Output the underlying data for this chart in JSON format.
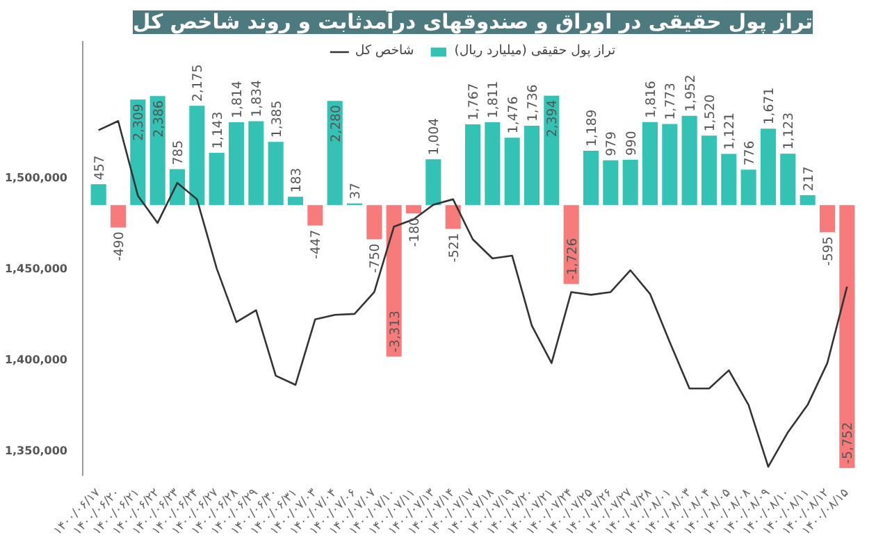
{
  "chart_data": {
    "type": "bar",
    "title": "تراز پول حقیقی در اوراق و صندوقهای درآمدثابت و روند شاخص کل",
    "categories": [
      "۱۴۰۰/۰۶/۱۷",
      "۱۴۰۰/۰۶/۲۰",
      "۱۴۰۰/۰۶/۲۱",
      "۱۴۰۰/۰۶/۲۲",
      "۱۴۰۰/۰۶/۲۳",
      "۱۴۰۰/۰۶/۲۴",
      "۱۴۰۰/۰۶/۲۷",
      "۱۴۰۰/۰۶/۲۸",
      "۱۴۰۰/۰۶/۲۹",
      "۱۴۰۰/۰۶/۳۰",
      "۱۴۰۰/۰۶/۳۱",
      "۱۴۰۰/۰۷/۰۳",
      "۱۴۰۰/۰۷/۰۴",
      "۱۴۰۰/۰۷/۰۶",
      "۱۴۰۰/۰۷/۰۷",
      "۱۴۰۰/۰۷/۱۰",
      "۱۴۰۰/۰۷/۱۱",
      "۱۴۰۰/۰۷/۱۳",
      "۱۴۰۰/۰۷/۱۴",
      "۱۴۰۰/۰۷/۱۷",
      "۱۴۰۰/۰۷/۱۸",
      "۱۴۰۰/۰۷/۱۹",
      "۱۴۰۰/۰۷/۲۰",
      "۱۴۰۰/۰۷/۲۱",
      "۱۴۰۰/۰۷/۲۴",
      "۱۴۰۰/۰۷/۲۵",
      "۱۴۰۰/۰۷/۲۶",
      "۱۴۰۰/۰۷/۲۷",
      "۱۴۰۰/۰۷/۲۸",
      "۱۴۰۰/۰۸/۰۱",
      "۱۴۰۰/۰۸/۰۳",
      "۱۴۰۰/۰۸/۰۴",
      "۱۴۰۰/۰۸/۰۵",
      "۱۴۰۰/۰۸/۰۸",
      "۱۴۰۰/۰۸/۰۹",
      "۱۴۰۰/۰۸/۱۰",
      "۱۴۰۰/۰۸/۱۱",
      "۱۴۰۰/۰۸/۱۲",
      "۱۴۰۰/۰۸/۱۵"
    ],
    "series": [
      {
        "name": "تراز پول حقیقی (میلیارد ریال)",
        "axis": "y2",
        "value_labels": [
          "457",
          "-490",
          "2,309",
          "2,386",
          "785",
          "2,175",
          "1,143",
          "1,814",
          "1,834",
          "1,385",
          "183",
          "-447",
          "2,280",
          "37",
          "-750",
          "-3,313",
          "-180",
          "1,004",
          "-521",
          "1,767",
          "1,811",
          "1,476",
          "1,736",
          "2,394",
          "-1,726",
          "1,189",
          "979",
          "990",
          "1,816",
          "1,773",
          "1,952",
          "1,520",
          "1,121",
          "776",
          "1,671",
          "1,123",
          "217",
          "-595",
          "-5,752"
        ],
        "colors": [
          "#33c2b4",
          "#f77b7b",
          "#33c2b4",
          "#33c2b4",
          "#33c2b4",
          "#33c2b4",
          "#33c2b4",
          "#33c2b4",
          "#33c2b4",
          "#33c2b4",
          "#33c2b4",
          "#f77b7b",
          "#33c2b4",
          "#33c2b4",
          "#f77b7b",
          "#f77b7b",
          "#f77b7b",
          "#33c2b4",
          "#f77b7b",
          "#33c2b4",
          "#33c2b4",
          "#33c2b4",
          "#33c2b4",
          "#33c2b4",
          "#f77b7b",
          "#33c2b4",
          "#33c2b4",
          "#33c2b4",
          "#33c2b4",
          "#33c2b4",
          "#33c2b4",
          "#33c2b4",
          "#33c2b4",
          "#33c2b4",
          "#33c2b4",
          "#33c2b4",
          "#33c2b4",
          "#f77b7b",
          "#f77b7b"
        ],
        "values": [
          457,
          -490,
          2309,
          2386,
          785,
          2175,
          1143,
          1814,
          1834,
          1385,
          183,
          -447,
          2280,
          37,
          -750,
          -3313,
          -180,
          1004,
          -521,
          1767,
          1811,
          1476,
          1736,
          2394,
          -1726,
          1189,
          979,
          990,
          1816,
          1773,
          1952,
          1520,
          1121,
          776,
          1671,
          1123,
          217,
          -595,
          -5752
        ]
      },
      {
        "name": "شاخص کل",
        "type": "line",
        "color": "#333333",
        "values": [
          1526000,
          1531000,
          1490000,
          1475000,
          1497000,
          1488000,
          1450000,
          1420500,
          1427000,
          1391000,
          1386000,
          1422000,
          1424500,
          1425000,
          1437000,
          1473000,
          1477000,
          1485000,
          1488000,
          1466000,
          1455500,
          1457000,
          1418500,
          1398000,
          1437000,
          1435500,
          1437000,
          1449000,
          1436000,
          1409500,
          1384000,
          1384000,
          1394000,
          1375000,
          1341000,
          1360000,
          1375000,
          1398000,
          1440000
        ]
      }
    ],
    "ylim": [
      1336000,
      1575000
    ],
    "yticks": [
      {
        "value": 1350000,
        "label": "1,350,000"
      },
      {
        "value": 1400000,
        "label": "1,400,000"
      },
      {
        "value": 1450000,
        "label": "1,450,000"
      },
      {
        "value": 1500000,
        "label": "1,500,000"
      }
    ],
    "legend": "top",
    "grid": false,
    "marker": "none",
    "line_style": "solid"
  }
}
